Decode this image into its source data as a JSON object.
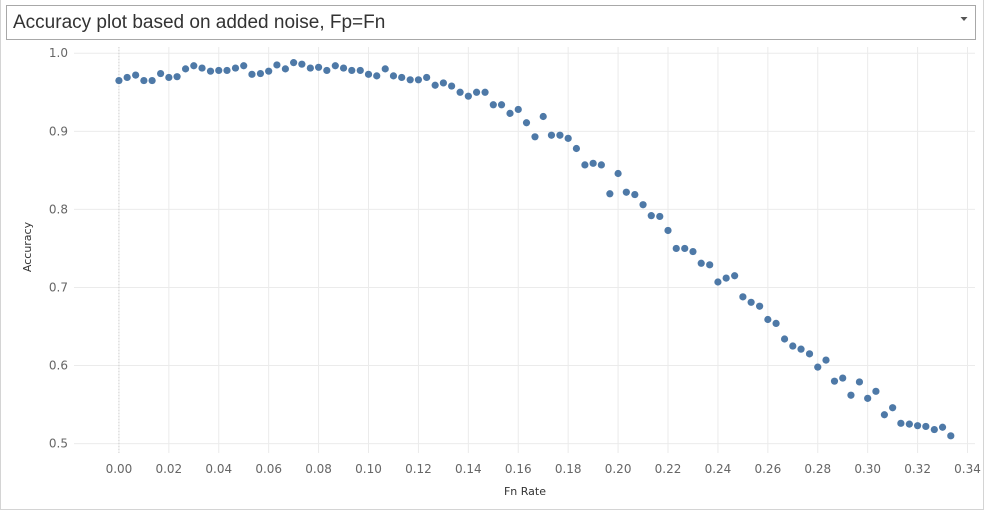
{
  "header": {
    "title": "Accuracy plot based on added noise, Fp=Fn",
    "dropdown_icon": "chevron-down-icon"
  },
  "colors": {
    "point": "#4e79a7",
    "grid": "#ebebeb",
    "zero_line": "#cfcfcf"
  },
  "chart_data": {
    "type": "scatter",
    "title": "Accuracy plot based on added noise, Fp=Fn",
    "xlabel": "Fn Rate",
    "ylabel": "Accuracy",
    "xlim": [
      -0.018,
      0.343
    ],
    "ylim": [
      0.488,
      1.008
    ],
    "grid": true,
    "legend": "none",
    "x_ticks": [
      "0.00",
      "0.02",
      "0.04",
      "0.06",
      "0.08",
      "0.10",
      "0.12",
      "0.14",
      "0.16",
      "0.18",
      "0.20",
      "0.22",
      "0.24",
      "0.26",
      "0.28",
      "0.30",
      "0.32",
      "0.34"
    ],
    "x_tick_values": [
      0,
      0.02,
      0.04,
      0.06,
      0.08,
      0.1,
      0.12,
      0.14,
      0.16,
      0.18,
      0.2,
      0.22,
      0.24,
      0.26,
      0.28,
      0.3,
      0.32,
      0.34
    ],
    "y_ticks": [
      "0.5",
      "0.6",
      "0.7",
      "0.8",
      "0.9",
      "1.0"
    ],
    "y_tick_values": [
      0.5,
      0.6,
      0.7,
      0.8,
      0.9,
      1.0
    ],
    "series": [
      {
        "points": [
          [
            0.0,
            0.965
          ],
          [
            0.0033,
            0.969
          ],
          [
            0.0067,
            0.972
          ],
          [
            0.01,
            0.965
          ],
          [
            0.0133,
            0.965
          ],
          [
            0.0167,
            0.974
          ],
          [
            0.02,
            0.969
          ],
          [
            0.0233,
            0.97
          ],
          [
            0.0267,
            0.98
          ],
          [
            0.03,
            0.984
          ],
          [
            0.0333,
            0.981
          ],
          [
            0.0367,
            0.977
          ],
          [
            0.04,
            0.978
          ],
          [
            0.0433,
            0.978
          ],
          [
            0.0467,
            0.981
          ],
          [
            0.05,
            0.984
          ],
          [
            0.0533,
            0.973
          ],
          [
            0.0567,
            0.974
          ],
          [
            0.06,
            0.977
          ],
          [
            0.0633,
            0.985
          ],
          [
            0.0667,
            0.98
          ],
          [
            0.07,
            0.988
          ],
          [
            0.0733,
            0.986
          ],
          [
            0.0767,
            0.981
          ],
          [
            0.08,
            0.982
          ],
          [
            0.0833,
            0.978
          ],
          [
            0.0867,
            0.984
          ],
          [
            0.09,
            0.981
          ],
          [
            0.0933,
            0.978
          ],
          [
            0.0967,
            0.978
          ],
          [
            0.1,
            0.973
          ],
          [
            0.1033,
            0.971
          ],
          [
            0.1067,
            0.98
          ],
          [
            0.11,
            0.971
          ],
          [
            0.1133,
            0.969
          ],
          [
            0.1167,
            0.966
          ],
          [
            0.12,
            0.966
          ],
          [
            0.1233,
            0.969
          ],
          [
            0.1267,
            0.959
          ],
          [
            0.13,
            0.962
          ],
          [
            0.1333,
            0.958
          ],
          [
            0.1367,
            0.95
          ],
          [
            0.14,
            0.945
          ],
          [
            0.1433,
            0.95
          ],
          [
            0.1467,
            0.95
          ],
          [
            0.15,
            0.934
          ],
          [
            0.1533,
            0.934
          ],
          [
            0.1567,
            0.923
          ],
          [
            0.16,
            0.928
          ],
          [
            0.1633,
            0.911
          ],
          [
            0.1667,
            0.893
          ],
          [
            0.17,
            0.919
          ],
          [
            0.1733,
            0.895
          ],
          [
            0.1767,
            0.895
          ],
          [
            0.18,
            0.891
          ],
          [
            0.1833,
            0.878
          ],
          [
            0.1867,
            0.857
          ],
          [
            0.19,
            0.859
          ],
          [
            0.1933,
            0.857
          ],
          [
            0.1967,
            0.82
          ],
          [
            0.2,
            0.846
          ],
          [
            0.2033,
            0.822
          ],
          [
            0.2067,
            0.819
          ],
          [
            0.21,
            0.806
          ],
          [
            0.2133,
            0.792
          ],
          [
            0.2167,
            0.791
          ],
          [
            0.22,
            0.773
          ],
          [
            0.2233,
            0.75
          ],
          [
            0.2267,
            0.75
          ],
          [
            0.23,
            0.746
          ],
          [
            0.2333,
            0.731
          ],
          [
            0.2367,
            0.729
          ],
          [
            0.24,
            0.707
          ],
          [
            0.2433,
            0.712
          ],
          [
            0.2467,
            0.715
          ],
          [
            0.25,
            0.688
          ],
          [
            0.2533,
            0.681
          ],
          [
            0.2567,
            0.676
          ],
          [
            0.26,
            0.659
          ],
          [
            0.2633,
            0.654
          ],
          [
            0.2667,
            0.634
          ],
          [
            0.27,
            0.625
          ],
          [
            0.2733,
            0.621
          ],
          [
            0.2767,
            0.615
          ],
          [
            0.28,
            0.598
          ],
          [
            0.2833,
            0.607
          ],
          [
            0.2867,
            0.58
          ],
          [
            0.29,
            0.584
          ],
          [
            0.2933,
            0.562
          ],
          [
            0.2967,
            0.579
          ],
          [
            0.3,
            0.558
          ],
          [
            0.3033,
            0.567
          ],
          [
            0.3067,
            0.537
          ],
          [
            0.31,
            0.546
          ],
          [
            0.3133,
            0.526
          ],
          [
            0.3167,
            0.525
          ],
          [
            0.32,
            0.523
          ],
          [
            0.3233,
            0.522
          ],
          [
            0.3267,
            0.518
          ],
          [
            0.33,
            0.521
          ],
          [
            0.3333,
            0.51
          ]
        ]
      }
    ]
  }
}
